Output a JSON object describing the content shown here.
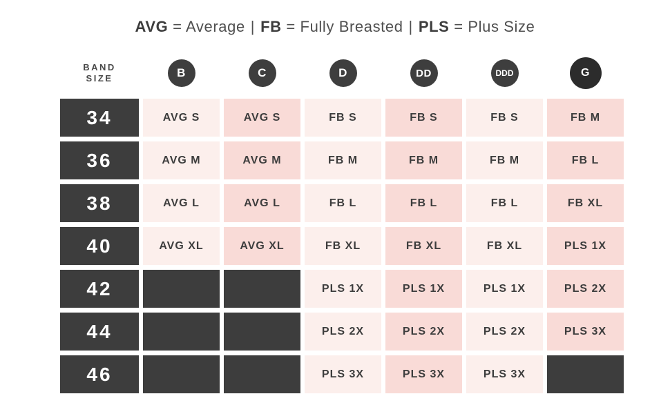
{
  "colors": {
    "dark": "#3d3d3d",
    "circle": "#3e3e3e",
    "circle_g": "#2c2c2c",
    "pink_light": "#fcefec",
    "pink_dark": "#f9dbd7",
    "cell_text": "#3d3d3d",
    "legend_abbr": "#3d3d3d",
    "legend_text": "#4f4f4f",
    "heading_text": "#4a4a4a"
  },
  "legend": {
    "equals": "=",
    "separator": "|",
    "items": [
      {
        "abbr": "AVG",
        "full": "Average"
      },
      {
        "abbr": "FB",
        "full": "Fully Breasted"
      },
      {
        "abbr": "PLS",
        "full": "Plus Size"
      }
    ]
  },
  "corner": {
    "line1": "BAND",
    "line2": "SIZE"
  },
  "chart_data": {
    "type": "table",
    "title": "AVG = Average | FB = Fully Breasted | PLS = Plus Size",
    "columns": [
      "BAND SIZE",
      "B",
      "C",
      "D",
      "DD",
      "DDD",
      "G"
    ],
    "rows": [
      [
        "34",
        "AVG S",
        "AVG S",
        "FB S",
        "FB S",
        "FB S",
        "FB M"
      ],
      [
        "36",
        "AVG M",
        "AVG M",
        "FB M",
        "FB M",
        "FB M",
        "FB L"
      ],
      [
        "38",
        "AVG L",
        "AVG L",
        "FB L",
        "FB L",
        "FB L",
        "FB XL"
      ],
      [
        "40",
        "AVG XL",
        "AVG XL",
        "FB XL",
        "FB XL",
        "FB XL",
        "PLS 1X"
      ],
      [
        "42",
        "",
        "",
        "PLS 1X",
        "PLS 1X",
        "PLS 1X",
        "PLS 2X"
      ],
      [
        "44",
        "",
        "",
        "PLS 2X",
        "PLS 2X",
        "PLS 2X",
        "PLS 3X"
      ],
      [
        "46",
        "",
        "",
        "PLS 3X",
        "PLS 3X",
        "PLS 3X",
        ""
      ]
    ]
  }
}
